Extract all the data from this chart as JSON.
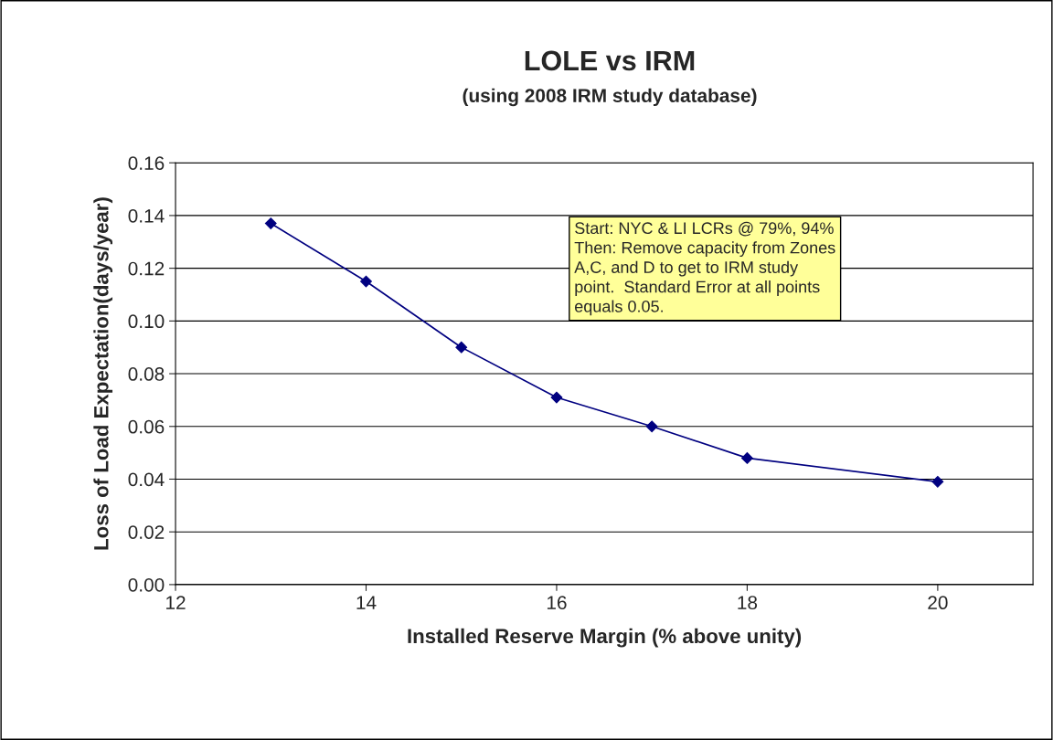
{
  "chart_data": {
    "type": "line",
    "title": "LOLE vs IRM",
    "subtitle": "(using 2008 IRM study database)",
    "xlabel": "Installed Reserve Margin (% above unity)",
    "ylabel": "Loss of Load Expectation(days/year)",
    "x": [
      13,
      14,
      15,
      16,
      17,
      18,
      20
    ],
    "series": [
      {
        "color": "#000080",
        "values": [
          0.137,
          0.115,
          0.09,
          0.071,
          0.06,
          0.048,
          0.039
        ]
      }
    ],
    "xlim": [
      12,
      21
    ],
    "xticks": [
      12,
      14,
      16,
      18,
      20
    ],
    "ylim": [
      0,
      0.16
    ],
    "yticks": [
      {
        "value": 0,
        "label": "0.00"
      },
      {
        "value": 0.02,
        "label": "0.02"
      },
      {
        "value": 0.04,
        "label": "0.04"
      },
      {
        "value": 0.06,
        "label": "0.06"
      },
      {
        "value": 0.08,
        "label": "0.08"
      },
      {
        "value": 0.1,
        "label": "0.10"
      },
      {
        "value": 0.12,
        "label": "0.12"
      },
      {
        "value": 0.14,
        "label": "0.14"
      },
      {
        "value": 0.16,
        "label": "0.16"
      }
    ],
    "grid": "y",
    "marker": "diamond",
    "line_style": "solid",
    "legend": false,
    "annotations": [
      "Start: NYC & LI LCRs @ 79%, 94%\nThen: Remove capacity from Zones\nA,C, and D to get to IRM study\npoint.  Standard Error at all points\nequals 0.05."
    ]
  }
}
